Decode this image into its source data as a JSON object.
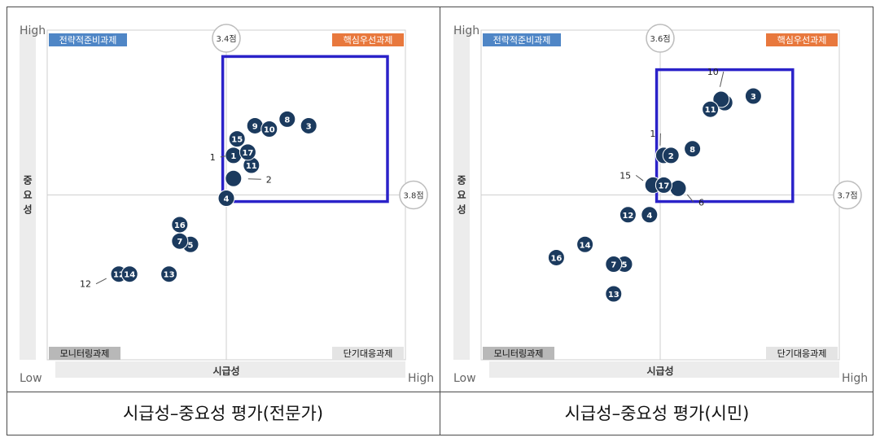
{
  "captions": [
    "시급성–중요성 평가(전문가)",
    "시급성–중요성 평가(시민)"
  ],
  "axis_text": {
    "high": "High",
    "low": "Low",
    "x_label": "시급성",
    "y_label": "중요성"
  },
  "quadrants": {
    "top_left": "전략적준비과제",
    "top_right": "핵심우선과제",
    "bottom_left": "모니터링과제",
    "bottom_right": "단기대응과제"
  },
  "colors": {
    "point": "#1b3a5e",
    "highlight_box": "#2b22c9",
    "tag_blue": "#4f86c6",
    "tag_orange": "#e8783d",
    "tag_gray": "#b8b8b8",
    "tag_lightgray": "#e4e4e4"
  },
  "chart_data": [
    {
      "type": "scatter",
      "title": "시급성–중요성 평가(전문가)",
      "xlabel": "시급성",
      "ylabel": "중요성",
      "x_mean_label": "3.4점",
      "y_mean_label": "3.8점",
      "points": [
        {
          "label": "1",
          "x": 0.52,
          "y": 0.62
        },
        {
          "label": "2",
          "x": 0.52,
          "y": 0.55
        },
        {
          "label": "3",
          "x": 0.73,
          "y": 0.71
        },
        {
          "label": "4",
          "x": 0.5,
          "y": 0.49
        },
        {
          "label": "5",
          "x": 0.4,
          "y": 0.35
        },
        {
          "label": "7",
          "x": 0.37,
          "y": 0.36
        },
        {
          "label": "8",
          "x": 0.67,
          "y": 0.73
        },
        {
          "label": "9",
          "x": 0.58,
          "y": 0.71
        },
        {
          "label": "10",
          "x": 0.62,
          "y": 0.7
        },
        {
          "label": "11",
          "x": 0.57,
          "y": 0.59
        },
        {
          "label": "12",
          "x": 0.2,
          "y": 0.26
        },
        {
          "label": "13",
          "x": 0.34,
          "y": 0.26
        },
        {
          "label": "14",
          "x": 0.23,
          "y": 0.26
        },
        {
          "label": "15",
          "x": 0.53,
          "y": 0.67
        },
        {
          "label": "16",
          "x": 0.37,
          "y": 0.41
        },
        {
          "label": "17",
          "x": 0.56,
          "y": 0.63
        }
      ]
    },
    {
      "type": "scatter",
      "title": "시급성–중요성 평가(시민)",
      "xlabel": "시급성",
      "ylabel": "중요성",
      "x_mean_label": "3.6점",
      "y_mean_label": "3.7점",
      "points": [
        {
          "label": "1",
          "x": 0.51,
          "y": 0.62
        },
        {
          "label": "2",
          "x": 0.53,
          "y": 0.62
        },
        {
          "label": "3",
          "x": 0.76,
          "y": 0.8
        },
        {
          "label": "4",
          "x": 0.47,
          "y": 0.44
        },
        {
          "label": "5",
          "x": 0.4,
          "y": 0.29
        },
        {
          "label": "6",
          "x": 0.55,
          "y": 0.52
        },
        {
          "label": "7",
          "x": 0.37,
          "y": 0.29
        },
        {
          "label": "8",
          "x": 0.59,
          "y": 0.64
        },
        {
          "label": "9",
          "x": 0.68,
          "y": 0.78
        },
        {
          "label": "10",
          "x": 0.67,
          "y": 0.79
        },
        {
          "label": "11",
          "x": 0.64,
          "y": 0.76
        },
        {
          "label": "12",
          "x": 0.41,
          "y": 0.44
        },
        {
          "label": "13",
          "x": 0.37,
          "y": 0.2
        },
        {
          "label": "14",
          "x": 0.29,
          "y": 0.35
        },
        {
          "label": "15",
          "x": 0.48,
          "y": 0.53
        },
        {
          "label": "16",
          "x": 0.21,
          "y": 0.31
        },
        {
          "label": "17",
          "x": 0.51,
          "y": 0.53
        }
      ]
    }
  ]
}
